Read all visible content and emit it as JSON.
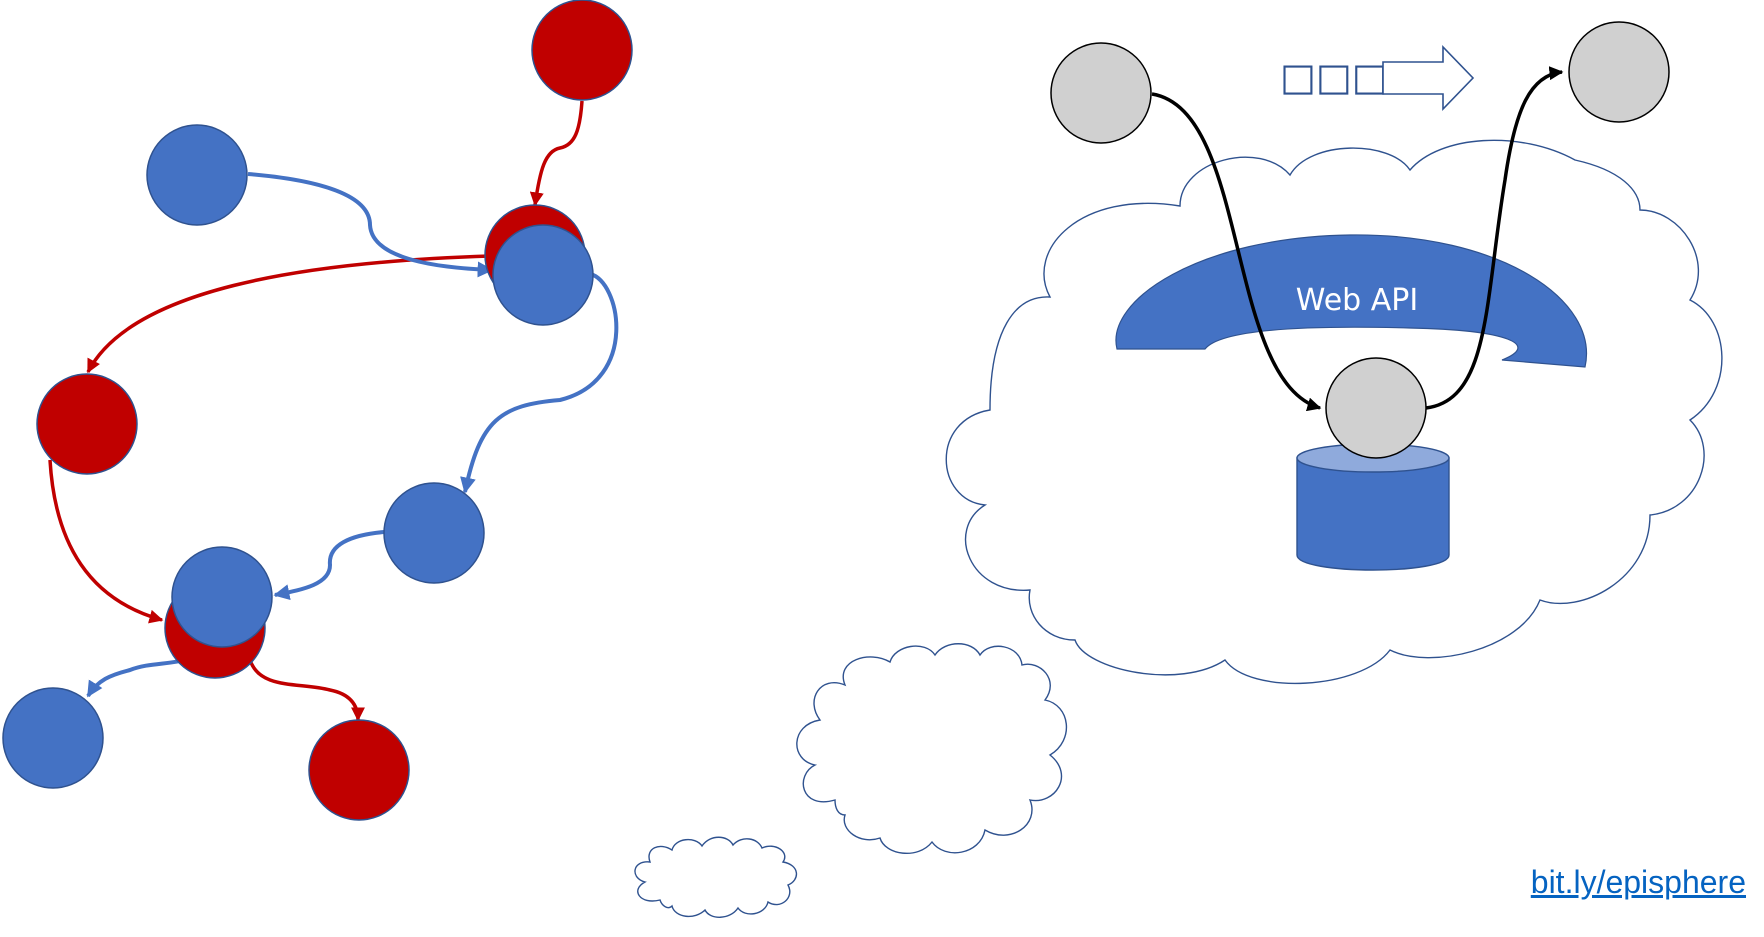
{
  "web_api": {
    "label": "Web API"
  },
  "arrow_caption": {
    "label": "□□□"
  },
  "footer": {
    "link_text": "bit.ly/episphere"
  },
  "colors": {
    "blue_node": "#4472c4",
    "red_node": "#c00000",
    "gray_node": "#d0d0d0",
    "cloud_outline": "#2f528f",
    "link": "#0563c1"
  },
  "icons": {
    "arrow": "block-arrow-right-icon",
    "database": "database-cylinder-icon"
  }
}
